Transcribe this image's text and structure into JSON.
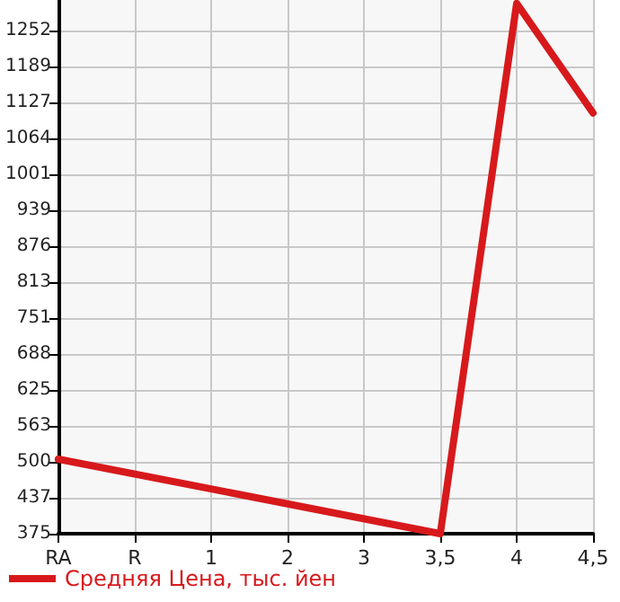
{
  "chart_data": {
    "type": "line",
    "categories": [
      "RA",
      "R",
      "1",
      "2",
      "3",
      "3,5",
      "4",
      "4,5"
    ],
    "series": [
      {
        "name": "Средняя Цена, тыс. йен",
        "color": "#d7191c",
        "values": [
          505,
          null,
          null,
          null,
          null,
          375,
          1299,
          1108
        ]
      }
    ],
    "ylim": [
      375,
      1305
    ],
    "yticks": [
      375,
      437,
      500,
      563,
      625,
      688,
      751,
      813,
      876,
      939,
      1001,
      1064,
      1127,
      1189,
      1252
    ],
    "grid": true,
    "legend": "bottom",
    "marker": "none",
    "line_style": "solid"
  }
}
